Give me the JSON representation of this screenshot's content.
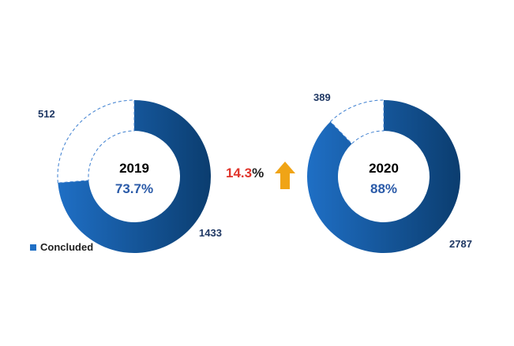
{
  "legend": {
    "label": "Concluded",
    "color": "#1f6fc5"
  },
  "change": {
    "value": "14.3",
    "sign": "%",
    "value_color": "#e0342b",
    "arrow_color": "#f0a416"
  },
  "colors": {
    "concluded_dark": "#0b3d6f",
    "concluded_light": "#1f6fc5",
    "remaining_line": "#3d7fd0",
    "year_color": "#000000",
    "pct_color": "#2a5aa8"
  },
  "chart_data": [
    {
      "type": "pie",
      "year": "2019",
      "percent_label": "73.7%",
      "slices": [
        {
          "name": "Concluded",
          "value": 1433,
          "label": "1433"
        },
        {
          "name": "",
          "value": 512,
          "label": "512"
        }
      ]
    },
    {
      "type": "pie",
      "year": "2020",
      "percent_label": "88%",
      "slices": [
        {
          "name": "Concluded",
          "value": 2787,
          "label": "2787"
        },
        {
          "name": "",
          "value": 389,
          "label": "389"
        }
      ]
    }
  ]
}
